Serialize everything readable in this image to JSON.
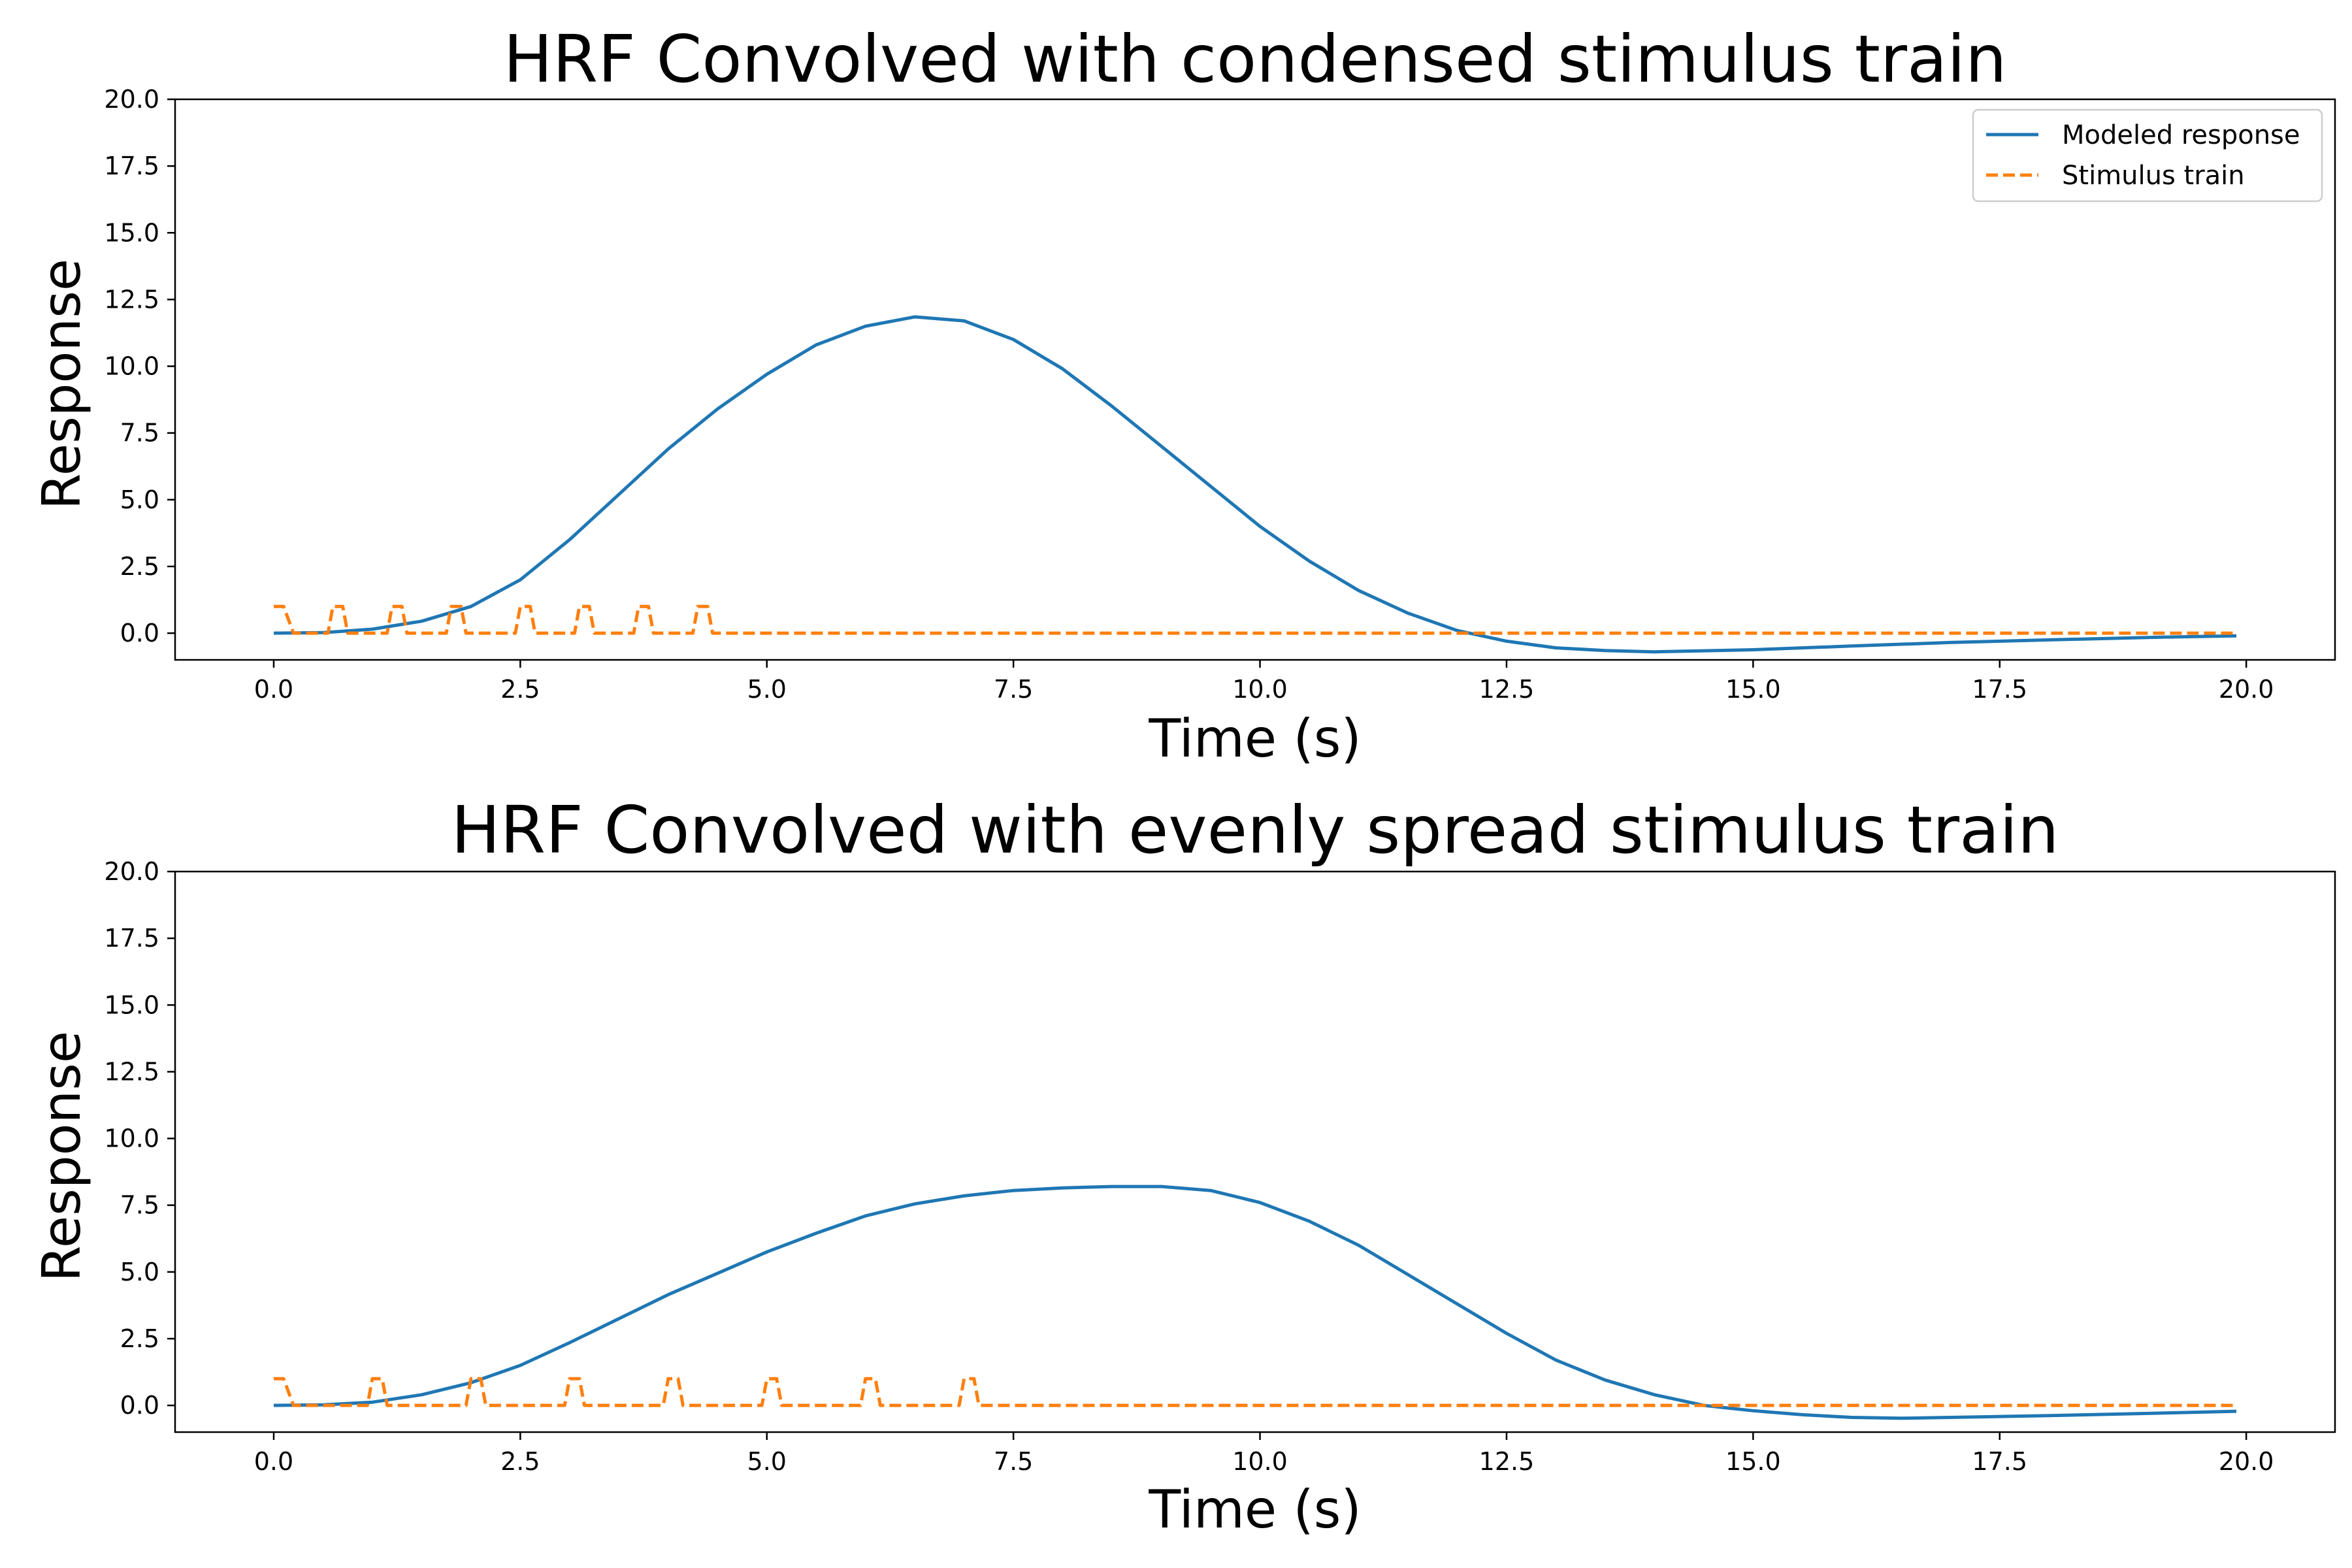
{
  "chart_data": [
    {
      "type": "line",
      "title": "HRF Convolved with condensed stimulus train",
      "xlabel": "Time (s)",
      "ylabel": "Response",
      "xlim": [
        -1.0,
        20.9
      ],
      "ylim": [
        -1.0,
        20.0
      ],
      "xticks": [
        "0.0",
        "2.5",
        "5.0",
        "7.5",
        "10.0",
        "12.5",
        "15.0",
        "17.5",
        "20.0"
      ],
      "yticks": [
        "0.0",
        "2.5",
        "5.0",
        "7.5",
        "10.0",
        "12.5",
        "15.0",
        "17.5",
        "20.0"
      ],
      "legend": {
        "position": "upper right",
        "entries": [
          "Modeled response",
          "Stimulus train"
        ]
      },
      "series": [
        {
          "name": "Modeled response",
          "color": "#1f77b4",
          "style": "solid",
          "x": [
            0,
            0.5,
            1.0,
            1.5,
            2.0,
            2.5,
            3.0,
            3.5,
            4.0,
            4.5,
            5.0,
            5.5,
            6.0,
            6.5,
            7.0,
            7.5,
            8.0,
            8.5,
            9.0,
            9.5,
            10.0,
            10.5,
            11.0,
            11.5,
            12.0,
            12.5,
            13.0,
            13.5,
            14.0,
            15.0,
            16.0,
            17.0,
            18.0,
            19.0,
            19.9
          ],
          "y": [
            0,
            0.02,
            0.15,
            0.45,
            1.0,
            2.0,
            3.5,
            5.2,
            6.9,
            8.4,
            9.7,
            10.8,
            11.5,
            11.85,
            11.7,
            11.0,
            9.9,
            8.5,
            7.0,
            5.5,
            4.0,
            2.7,
            1.6,
            0.75,
            0.1,
            -0.3,
            -0.55,
            -0.65,
            -0.7,
            -0.62,
            -0.48,
            -0.35,
            -0.25,
            -0.16,
            -0.1
          ]
        },
        {
          "name": "Stimulus train",
          "color": "#ff7f0e",
          "style": "dashed",
          "x": [
            0,
            0.1,
            0.2,
            0.25,
            0.55,
            0.6,
            0.7,
            0.75,
            1.15,
            1.2,
            1.3,
            1.35,
            1.75,
            1.8,
            1.9,
            1.95,
            2.45,
            2.5,
            2.6,
            2.65,
            3.05,
            3.1,
            3.2,
            3.25,
            3.65,
            3.7,
            3.8,
            3.85,
            4.25,
            4.3,
            4.4,
            4.45,
            19.9
          ],
          "y": [
            1,
            1,
            0,
            0,
            0,
            1,
            1,
            0,
            0,
            1,
            1,
            0,
            0,
            1,
            1,
            0,
            0,
            1,
            1,
            0,
            0,
            1,
            1,
            0,
            0,
            1,
            1,
            0,
            0,
            1,
            1,
            0,
            0
          ]
        }
      ]
    },
    {
      "type": "line",
      "title": "HRF Convolved with evenly spread stimulus train",
      "xlabel": "Time (s)",
      "ylabel": "Response",
      "xlim": [
        -1.0,
        20.9
      ],
      "ylim": [
        -1.0,
        20.0
      ],
      "xticks": [
        "0.0",
        "2.5",
        "5.0",
        "7.5",
        "10.0",
        "12.5",
        "15.0",
        "17.5",
        "20.0"
      ],
      "yticks": [
        "0.0",
        "2.5",
        "5.0",
        "7.5",
        "10.0",
        "12.5",
        "15.0",
        "17.5",
        "20.0"
      ],
      "series": [
        {
          "name": "Modeled response",
          "color": "#1f77b4",
          "style": "solid",
          "x": [
            0,
            0.5,
            1.0,
            1.5,
            2.0,
            2.5,
            3.0,
            3.5,
            4.0,
            4.5,
            5.0,
            5.5,
            6.0,
            6.5,
            7.0,
            7.5,
            8.0,
            8.5,
            9.0,
            9.5,
            10.0,
            10.5,
            11.0,
            11.5,
            12.0,
            12.5,
            13.0,
            13.5,
            14.0,
            14.5,
            15.0,
            15.5,
            16.0,
            16.5,
            17.0,
            18.0,
            19.0,
            19.9
          ],
          "y": [
            0,
            0.02,
            0.12,
            0.4,
            0.85,
            1.5,
            2.35,
            3.25,
            4.15,
            4.95,
            5.75,
            6.45,
            7.1,
            7.55,
            7.85,
            8.05,
            8.15,
            8.2,
            8.2,
            8.05,
            7.6,
            6.9,
            6.0,
            4.9,
            3.8,
            2.7,
            1.7,
            0.95,
            0.4,
            0.0,
            -0.2,
            -0.35,
            -0.45,
            -0.48,
            -0.45,
            -0.38,
            -0.3,
            -0.22
          ]
        },
        {
          "name": "Stimulus train",
          "color": "#ff7f0e",
          "style": "dashed",
          "x": [
            0,
            0.1,
            0.2,
            0.25,
            0.95,
            1.0,
            1.1,
            1.15,
            1.95,
            2.0,
            2.1,
            2.15,
            2.95,
            3.0,
            3.1,
            3.15,
            3.95,
            4.0,
            4.1,
            4.15,
            4.95,
            5.0,
            5.1,
            5.15,
            5.95,
            6.0,
            6.1,
            6.15,
            6.95,
            7.0,
            7.1,
            7.15,
            19.9
          ],
          "y": [
            1,
            1,
            0,
            0,
            0,
            1,
            1,
            0,
            0,
            1,
            1,
            0,
            0,
            1,
            1,
            0,
            0,
            1,
            1,
            0,
            0,
            1,
            1,
            0,
            0,
            1,
            1,
            0,
            0,
            1,
            1,
            0,
            0
          ]
        }
      ]
    }
  ]
}
